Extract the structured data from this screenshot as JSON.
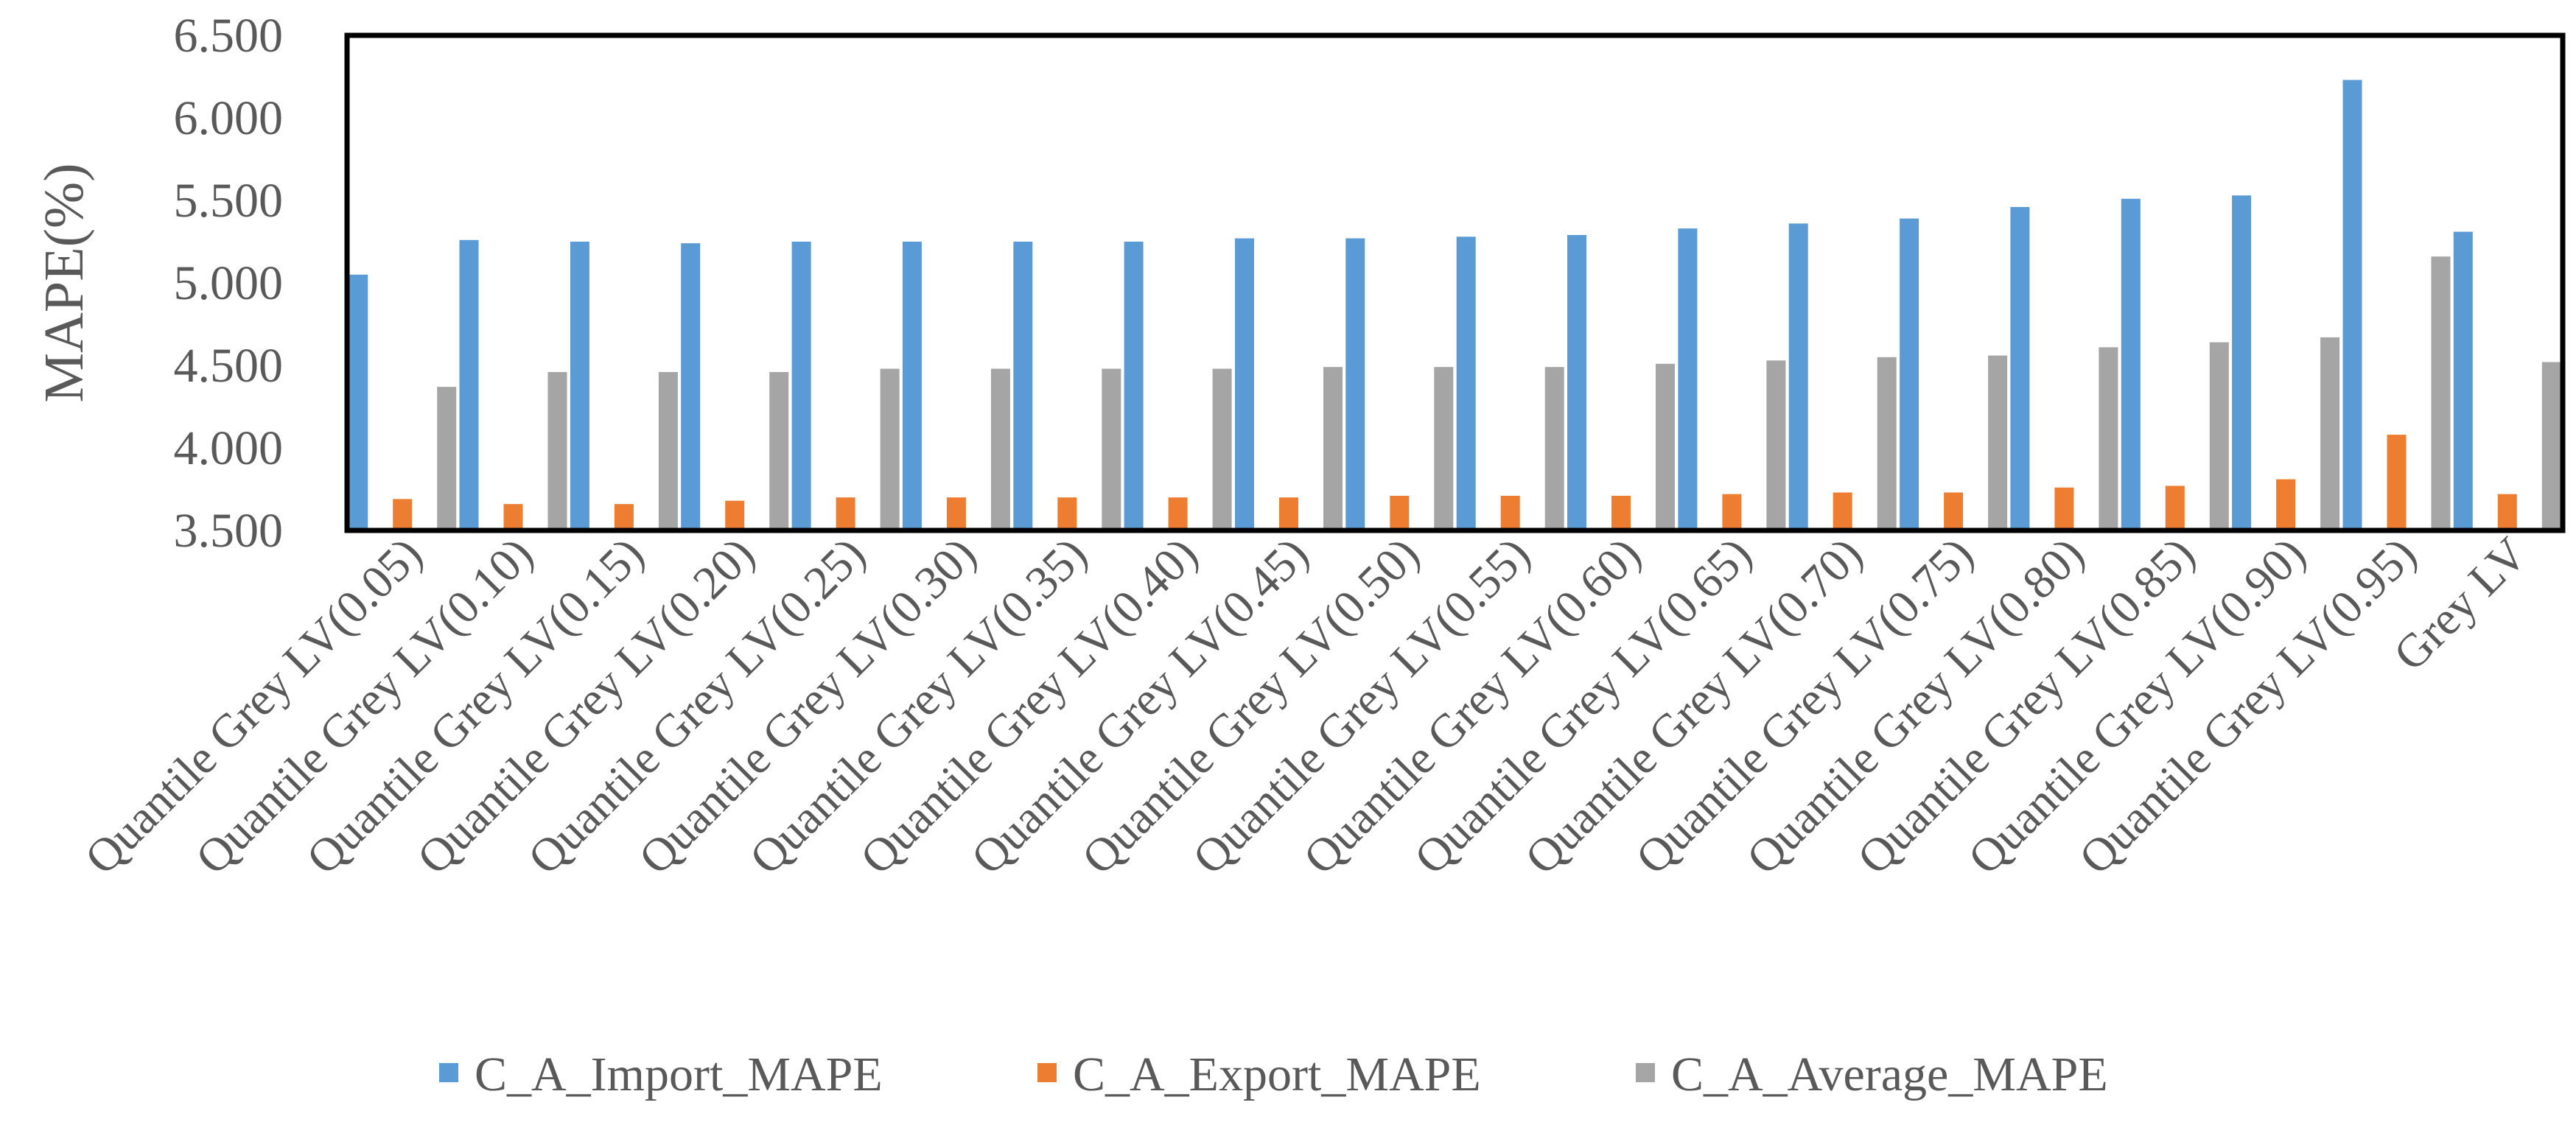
{
  "chart_data": {
    "type": "bar",
    "title": "",
    "xlabel": "",
    "ylabel": "MAPE(%)",
    "ylim": [
      3.5,
      6.5
    ],
    "yticks": [
      3.5,
      4.0,
      4.5,
      5.0,
      5.5,
      6.0,
      6.5
    ],
    "ytick_labels": [
      "3.500",
      "4.000",
      "4.500",
      "5.000",
      "5.500",
      "6.000",
      "6.500"
    ],
    "grid": false,
    "legend_position": "bottom",
    "categories": [
      "Quantile Grey LV(0.05)",
      "Quantile Grey LV(0.10)",
      "Quantile Grey LV(0.15)",
      "Quantile Grey LV(0.20)",
      "Quantile Grey LV(0.25)",
      "Quantile Grey LV(0.30)",
      "Quantile Grey LV(0.35)",
      "Quantile Grey LV(0.40)",
      "Quantile Grey LV(0.45)",
      "Quantile Grey LV(0.50)",
      "Quantile Grey LV(0.55)",
      "Quantile Grey LV(0.60)",
      "Quantile Grey LV(0.65)",
      "Quantile Grey LV(0.70)",
      "Quantile Grey LV(0.75)",
      "Quantile Grey LV(0.80)",
      "Quantile Grey LV(0.85)",
      "Quantile Grey LV(0.90)",
      "Quantile Grey LV(0.95)",
      "Grey LV"
    ],
    "series": [
      {
        "name": "C_A_Import_MAPE",
        "color": "#5B9BD5",
        "values": [
          5.05,
          5.26,
          5.25,
          5.24,
          5.25,
          5.25,
          5.25,
          5.25,
          5.27,
          5.27,
          5.28,
          5.29,
          5.33,
          5.36,
          5.39,
          5.46,
          5.51,
          5.53,
          6.23,
          5.31
        ]
      },
      {
        "name": "C_A_Export_MAPE",
        "color": "#ED7D31",
        "values": [
          3.69,
          3.66,
          3.66,
          3.68,
          3.7,
          3.7,
          3.7,
          3.7,
          3.7,
          3.71,
          3.71,
          3.71,
          3.72,
          3.73,
          3.73,
          3.76,
          3.77,
          3.81,
          4.08,
          3.72
        ]
      },
      {
        "name": "C_A_Average_MAPE",
        "color": "#A5A5A5",
        "values": [
          4.37,
          4.46,
          4.46,
          4.46,
          4.48,
          4.48,
          4.48,
          4.48,
          4.49,
          4.49,
          4.49,
          4.51,
          4.53,
          4.55,
          4.56,
          4.61,
          4.64,
          4.67,
          5.16,
          4.52
        ]
      }
    ]
  }
}
